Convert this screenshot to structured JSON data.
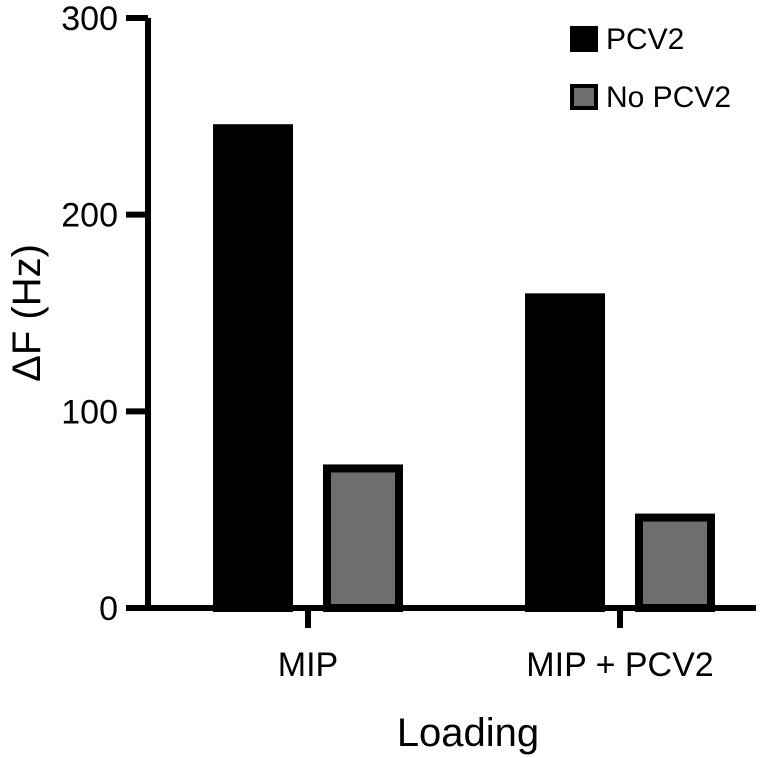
{
  "chart_data": {
    "type": "bar",
    "title": "",
    "xlabel": "Loading",
    "ylabel": "ΔF (Hz)",
    "ylim": [
      0,
      300
    ],
    "yticks": [
      0,
      100,
      200,
      300
    ],
    "categories": [
      "MIP",
      "MIP + PCV2"
    ],
    "series": [
      {
        "name": "PCV2",
        "values": [
          246,
          160
        ],
        "color": "#000000"
      },
      {
        "name": "No PCV2",
        "values": [
          73,
          48
        ],
        "color": "#6e6e6e"
      }
    ],
    "legend": "top-right",
    "grid": false
  }
}
